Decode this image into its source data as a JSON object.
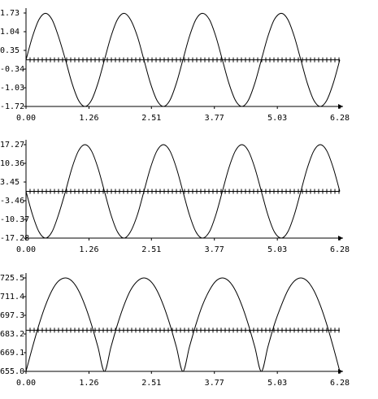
{
  "chart_data": [
    {
      "type": "line",
      "reference_line": 0,
      "x": [
        0,
        0.13,
        0.26,
        0.39,
        0.52,
        0.65,
        0.79,
        0.92,
        1.05,
        1.18,
        1.31,
        1.44,
        1.57,
        1.7,
        1.83,
        1.96,
        2.09,
        2.23,
        2.36,
        2.49,
        2.62,
        2.75,
        2.88,
        3.01,
        3.14,
        3.27,
        3.4,
        3.53,
        3.67,
        3.8,
        3.93,
        4.06,
        4.19,
        4.32,
        4.45,
        4.58,
        4.71,
        4.84,
        4.97,
        5.11,
        5.24,
        5.37,
        5.5,
        5.63,
        5.76,
        5.89,
        6.02,
        6.15,
        6.28
      ],
      "values": [
        0,
        0.86,
        1.49,
        1.72,
        1.49,
        0.86,
        0,
        -0.86,
        -1.49,
        -1.72,
        -1.49,
        -0.86,
        0,
        0.86,
        1.49,
        1.72,
        1.49,
        0.86,
        0,
        -0.86,
        -1.49,
        -1.72,
        -1.49,
        -0.86,
        0,
        0.86,
        1.49,
        1.72,
        1.49,
        0.86,
        0,
        -0.86,
        -1.49,
        -1.72,
        -1.49,
        -0.86,
        0,
        0.86,
        1.49,
        1.72,
        1.49,
        0.86,
        0,
        -0.86,
        -1.49,
        -1.72,
        -1.49,
        -0.86,
        0
      ],
      "color": "#000000",
      "xlim": [
        0,
        6.28
      ],
      "xticks": [
        {
          "value": 0,
          "label": "0.00"
        },
        1.26,
        2.51,
        3.77,
        5.03,
        6.28
      ],
      "ylim": [
        -1.72,
        1.73
      ],
      "yticks": [
        1.73,
        1.04,
        0.35,
        -0.34,
        -1.03,
        -1.72
      ]
    },
    {
      "type": "line",
      "reference_line": 0,
      "x": [
        0,
        0.13,
        0.26,
        0.39,
        0.52,
        0.65,
        0.79,
        0.92,
        1.05,
        1.18,
        1.31,
        1.44,
        1.57,
        1.7,
        1.83,
        1.96,
        2.09,
        2.23,
        2.36,
        2.49,
        2.62,
        2.75,
        2.88,
        3.01,
        3.14,
        3.27,
        3.4,
        3.53,
        3.67,
        3.8,
        3.93,
        4.06,
        4.19,
        4.32,
        4.45,
        4.58,
        4.71,
        4.84,
        4.97,
        5.11,
        5.24,
        5.37,
        5.5,
        5.63,
        5.76,
        5.89,
        6.02,
        6.15,
        6.28
      ],
      "values": [
        0,
        -8.64,
        -14.96,
        -17.28,
        -14.96,
        -8.64,
        0,
        8.64,
        14.96,
        17.27,
        14.96,
        8.64,
        0,
        -8.64,
        -14.96,
        -17.28,
        -14.96,
        -8.64,
        0,
        8.64,
        14.96,
        17.27,
        14.96,
        8.64,
        0,
        -8.64,
        -14.96,
        -17.28,
        -14.96,
        -8.64,
        0,
        8.64,
        14.96,
        17.27,
        14.96,
        8.64,
        0,
        -8.64,
        -14.96,
        -17.28,
        -14.96,
        -8.64,
        0,
        8.64,
        14.96,
        17.27,
        14.96,
        8.64,
        0
      ],
      "color": "#000000",
      "xlim": [
        0,
        6.28
      ],
      "xticks": [
        {
          "value": 0,
          "label": "0.00"
        },
        1.26,
        2.51,
        3.77,
        5.03,
        6.28
      ],
      "ylim": [
        -17.28,
        17.27
      ],
      "yticks": [
        17.27,
        10.36,
        3.45,
        -3.46,
        -10.37,
        -17.28
      ]
    },
    {
      "type": "line",
      "reference_line": 686,
      "x": [
        0,
        0.13,
        0.26,
        0.39,
        0.52,
        0.65,
        0.79,
        0.92,
        1.05,
        1.18,
        1.31,
        1.44,
        1.57,
        1.7,
        1.83,
        1.96,
        2.09,
        2.23,
        2.36,
        2.49,
        2.62,
        2.75,
        2.88,
        3.01,
        3.14,
        3.27,
        3.4,
        3.53,
        3.67,
        3.8,
        3.93,
        4.06,
        4.19,
        4.32,
        4.45,
        4.58,
        4.71,
        4.84,
        4.97,
        5.11,
        5.24,
        5.37,
        5.5,
        5.63,
        5.76,
        5.89,
        6.02,
        6.15,
        6.28
      ],
      "values": [
        655,
        673.3,
        690.3,
        704.8,
        716.1,
        723.1,
        725.5,
        723.1,
        716.1,
        704.8,
        690.3,
        673.3,
        655,
        673.3,
        690.3,
        704.8,
        716.1,
        723.1,
        725.5,
        723.1,
        716.1,
        704.8,
        690.3,
        673.3,
        655,
        673.3,
        690.3,
        704.8,
        716.1,
        723.1,
        725.5,
        723.1,
        716.1,
        704.8,
        690.3,
        673.3,
        655,
        673.3,
        690.3,
        704.8,
        716.1,
        723.1,
        725.5,
        723.1,
        716.1,
        704.8,
        690.3,
        673.3,
        655
      ],
      "color": "#000000",
      "xlim": [
        0,
        6.28
      ],
      "xticks": [
        {
          "value": 0,
          "label": "0.00"
        },
        1.26,
        2.51,
        3.77,
        5.03,
        6.28
      ],
      "ylim": [
        655,
        725.5
      ],
      "yticks": [
        725.5,
        711.4,
        697.3,
        683.2,
        669.1,
        {
          "value": 655,
          "label": "655.0"
        }
      ]
    }
  ]
}
